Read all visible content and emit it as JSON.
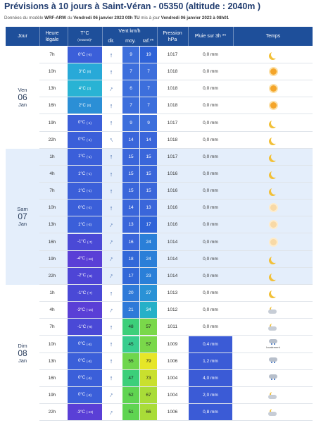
{
  "header": {
    "title": "Prévisions à 10 jours à Saint-Véran - 05350 (altitude : 2040m )",
    "subtitle_pre": "Données du modèle ",
    "model": "WRF-ARW",
    "subtitle_mid": " du ",
    "run_date": "Vendredi 06 janvier 2023 00h TU",
    "subtitle_mid2": " mis à jour ",
    "update_date": "Vendredi 06 janvier 2023 à 08h01"
  },
  "columns": {
    "jour": "Jour",
    "heure": "Heure",
    "heure2": "légale",
    "temp": "T°C",
    "temp_sub": "(ressenti)*",
    "vent": "Vent km/h",
    "dir": "dir.",
    "moy": "moy.",
    "raf": "raf.**",
    "pression": "Pression",
    "pression_unit": "hPa",
    "pluie": "Pluie sur 3h **",
    "temps": "Temps"
  },
  "colors": {
    "header": "#1e4f9a",
    "day_alt": "#e4eefb",
    "rain": "#3b5bd6"
  },
  "days": [
    {
      "name": "Ven",
      "num": "06",
      "month": "Jan",
      "rows": [
        {
          "hour": "7h",
          "temp": "0°C",
          "feel": "(-5)",
          "tc": "#3b5fd9",
          "dir": "N",
          "moy": "9",
          "raf": "19",
          "mc": "#3d6fdc",
          "rc": "#2f63d8",
          "pres": "1017",
          "rain": "0,0 mm",
          "wx": "moon"
        },
        {
          "hour": "10h",
          "temp": "3°C",
          "feel": "(0)",
          "tc": "#28a9d8",
          "dir": "N",
          "moy": "7",
          "raf": "7",
          "mc": "#3d6fdc",
          "rc": "#3d6fdc",
          "pres": "1018",
          "rain": "0,0 mm",
          "wx": "sun"
        },
        {
          "hour": "13h",
          "temp": "4°C",
          "feel": "(2)",
          "tc": "#29b3d4",
          "dir": "NE",
          "moy": "6",
          "raf": "7",
          "mc": "#3d6fdc",
          "rc": "#3d6fdc",
          "pres": "1018",
          "rain": "0,0 mm",
          "wx": "sun"
        },
        {
          "hour": "16h",
          "temp": "2°C",
          "feel": "(0)",
          "tc": "#2b8fd6",
          "dir": "N",
          "moy": "7",
          "raf": "7",
          "mc": "#3d6fdc",
          "rc": "#3d6fdc",
          "pres": "1018",
          "rain": "0,0 mm",
          "wx": "sun"
        },
        {
          "hour": "19h",
          "temp": "0°C",
          "feel": "(-1)",
          "tc": "#3b5fd9",
          "dir": "N",
          "moy": "9",
          "raf": "9",
          "mc": "#3d6fdc",
          "rc": "#3d6fdc",
          "pres": "1017",
          "rain": "0,0 mm",
          "wx": "moon"
        },
        {
          "hour": "22h",
          "temp": "0°C",
          "feel": "(-4)",
          "tc": "#3b5fd9",
          "dir": "NW",
          "moy": "14",
          "raf": "14",
          "mc": "#3a66da",
          "rc": "#3a66da",
          "pres": "1018",
          "rain": "0,0 mm",
          "wx": "moon"
        }
      ]
    },
    {
      "name": "Sam",
      "num": "07",
      "month": "Jan",
      "rows": [
        {
          "hour": "1h",
          "temp": "1°C",
          "feel": "(-1)",
          "tc": "#3b5fd9",
          "dir": "N",
          "moy": "15",
          "raf": "15",
          "mc": "#3a66da",
          "rc": "#3a66da",
          "pres": "1017",
          "rain": "0,0 mm",
          "wx": "moon"
        },
        {
          "hour": "4h",
          "temp": "1°C",
          "feel": "(-1)",
          "tc": "#3b5fd9",
          "dir": "N",
          "moy": "15",
          "raf": "15",
          "mc": "#3a66da",
          "rc": "#3a66da",
          "pres": "1016",
          "rain": "0,0 mm",
          "wx": "moon"
        },
        {
          "hour": "7h",
          "temp": "1°C",
          "feel": "(-1)",
          "tc": "#3b5fd9",
          "dir": "N",
          "moy": "15",
          "raf": "15",
          "mc": "#3a66da",
          "rc": "#3a66da",
          "pres": "1016",
          "rain": "0,0 mm",
          "wx": "moon"
        },
        {
          "hour": "10h",
          "temp": "0°C",
          "feel": "(-2)",
          "tc": "#3b5fd9",
          "dir": "N",
          "moy": "14",
          "raf": "13",
          "mc": "#3a66da",
          "rc": "#3a66da",
          "pres": "1016",
          "rain": "0,0 mm",
          "wx": "sunpale"
        },
        {
          "hour": "13h",
          "temp": "1°C",
          "feel": "(-3)",
          "tc": "#3b5fd9",
          "dir": "NE",
          "moy": "13",
          "raf": "17",
          "mc": "#3a66da",
          "rc": "#2f63d8",
          "pres": "1016",
          "rain": "0,0 mm",
          "wx": "sunpale"
        },
        {
          "hour": "16h",
          "temp": "-1°C",
          "feel": "(-7)",
          "tc": "#4a49d6",
          "dir": "NE",
          "moy": "16",
          "raf": "24",
          "mc": "#3a66da",
          "rc": "#2a7fd8",
          "pres": "1014",
          "rain": "0,0 mm",
          "wx": "sunpale"
        },
        {
          "hour": "19h",
          "temp": "-4°C",
          "feel": "(-16)",
          "tc": "#5a3fd6",
          "dir": "NE",
          "moy": "18",
          "raf": "24",
          "mc": "#3268d8",
          "rc": "#2a7fd8",
          "pres": "1014",
          "rain": "0,0 mm",
          "wx": "moon"
        },
        {
          "hour": "22h",
          "temp": "-2°C",
          "feel": "(-8)",
          "tc": "#4e45d6",
          "dir": "NE",
          "moy": "17",
          "raf": "23",
          "mc": "#3268d8",
          "rc": "#2a7fd8",
          "pres": "1014",
          "rain": "0,0 mm",
          "wx": "moon"
        }
      ]
    },
    {
      "name": "Dim",
      "num": "08",
      "month": "Jan",
      "rows": [
        {
          "hour": "1h",
          "temp": "-1°C",
          "feel": "(-7)",
          "tc": "#4a49d6",
          "dir": "N",
          "moy": "20",
          "raf": "27",
          "mc": "#2f7ad8",
          "rc": "#2a92d6",
          "pres": "1013",
          "rain": "0,0 mm",
          "wx": "moon"
        },
        {
          "hour": "4h",
          "temp": "-3°C",
          "feel": "(-16)",
          "tc": "#5a3fd6",
          "dir": "NE",
          "moy": "21",
          "raf": "34",
          "mc": "#2f7ad8",
          "rc": "#25b0c8",
          "pres": "1012",
          "rain": "0,0 mm",
          "wx": "cloudmoon"
        },
        {
          "hour": "7h",
          "temp": "-1°C",
          "feel": "(-8)",
          "tc": "#4a49d6",
          "dir": "N",
          "moy": "48",
          "raf": "57",
          "mc": "#3ccf7a",
          "rc": "#7ad84a",
          "pres": "1011",
          "rain": "0,0 mm",
          "wx": "cloudmoon"
        },
        {
          "hour": "10h",
          "temp": "0°C",
          "feel": "(-8)",
          "tc": "#3b5fd9",
          "dir": "N",
          "moy": "45",
          "raf": "57",
          "mc": "#38cd8e",
          "rc": "#7ad84a",
          "pres": "1009",
          "rain": "0,4 mm",
          "wx": "cloudsnow",
          "note": "localement"
        },
        {
          "hour": "13h",
          "temp": "0°C",
          "feel": "(-8)",
          "tc": "#3b5fd9",
          "dir": "N",
          "moy": "55",
          "raf": "79",
          "mc": "#6fd64c",
          "rc": "#e6e628",
          "pres": "1006",
          "rain": "1,2 mm",
          "wx": "cloudsnow"
        },
        {
          "hour": "16h",
          "temp": "0°C",
          "feel": "(-9)",
          "tc": "#3b5fd9",
          "dir": "N",
          "moy": "47",
          "raf": "73",
          "mc": "#3ccf7a",
          "rc": "#c9e02e",
          "pres": "1004",
          "rain": "4,0 mm",
          "wx": "cloudsnow"
        },
        {
          "hour": "19h",
          "temp": "0°C",
          "feel": "(-8)",
          "tc": "#3b5fd9",
          "dir": "NE",
          "moy": "52",
          "raf": "67",
          "mc": "#5fd451",
          "rc": "#a9dc38",
          "pres": "1004",
          "rain": "2,0 mm",
          "wx": "cloudmoon"
        },
        {
          "hour": "22h",
          "temp": "-3°C",
          "feel": "(-13)",
          "tc": "#5a3fd6",
          "dir": "NE",
          "moy": "51",
          "raf": "66",
          "mc": "#5fd451",
          "rc": "#a9dc38",
          "pres": "1006",
          "rain": "0,8 mm",
          "wx": "cloudmoon"
        }
      ]
    }
  ]
}
